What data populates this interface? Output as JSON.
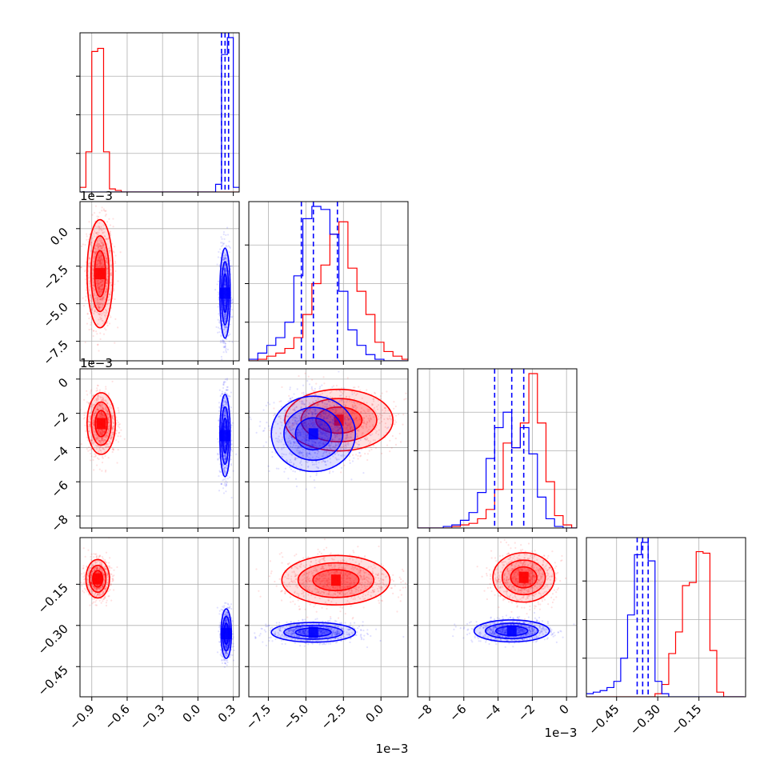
{
  "chart_data": {
    "type": "corner",
    "title": "",
    "series": [
      {
        "name": "",
        "color": "#ff0000"
      },
      {
        "name": "",
        "color": "#0000ff"
      }
    ],
    "quantile_lines_color": "#0000ff",
    "grid": true,
    "params": [
      {
        "range": [
          -1.0,
          0.35
        ],
        "ticks": [
          -0.9,
          -0.6,
          -0.3,
          0.0,
          0.3
        ],
        "tick_labels": [
          "−0.9",
          "−0.6",
          "−0.3",
          "0.0",
          "0.3"
        ],
        "offset": ""
      },
      {
        "range": [
          -0.0088,
          0.0018
        ],
        "ticks": [
          -0.0075,
          -0.005,
          -0.0025,
          0.0
        ],
        "tick_labels": [
          "−7.5",
          "−5.0",
          "−2.5",
          "0.0"
        ],
        "offset": "1e−3"
      },
      {
        "range": [
          -0.0087,
          0.0006
        ],
        "ticks": [
          -0.008,
          -0.006,
          -0.004,
          -0.002,
          0.0
        ],
        "tick_labels": [
          "−8",
          "−6",
          "−4",
          "−2",
          "0"
        ],
        "offset": "1e−3"
      },
      {
        "range": [
          -0.56,
          0.02
        ],
        "ticks": [
          -0.45,
          -0.3,
          -0.15
        ],
        "tick_labels": [
          "−0.45",
          "−0.30",
          "−0.15"
        ],
        "offset": ""
      }
    ],
    "histograms": [
      {
        "param": 0,
        "edges": [
          -1.0,
          -0.95,
          -0.9,
          -0.85,
          -0.8,
          -0.75,
          -0.7,
          -0.65,
          -0.6,
          -0.55,
          -0.5,
          -0.45,
          -0.4,
          -0.35,
          -0.3,
          -0.25,
          -0.2,
          -0.15,
          -0.1,
          -0.05,
          0.0,
          0.05,
          0.1,
          0.15,
          0.2,
          0.25,
          0.3,
          0.35
        ],
        "red": [
          0.03,
          0.26,
          0.91,
          0.93,
          0.26,
          0.02,
          0.01,
          0.0,
          0,
          0,
          0,
          0,
          0,
          0,
          0,
          0,
          0,
          0,
          0,
          0,
          0,
          0,
          0,
          0,
          0,
          0,
          0
        ],
        "blue": [
          0,
          0,
          0,
          0,
          0,
          0,
          0,
          0,
          0,
          0,
          0,
          0,
          0,
          0,
          0,
          0,
          0,
          0,
          0,
          0,
          0,
          0,
          0,
          0.05,
          0.89,
          1.0,
          0.03
        ],
        "quantiles": [
          0.2,
          0.23,
          0.26
        ]
      },
      {
        "param": 1,
        "edges": [
          -0.0088,
          -0.0082,
          -0.0076,
          -0.007,
          -0.0064,
          -0.0058,
          -0.0052,
          -0.0046,
          -0.004,
          -0.0034,
          -0.0028,
          -0.0022,
          -0.0016,
          -0.001,
          -0.0004,
          0.0002,
          0.0008,
          0.0014,
          0.002
        ],
        "red": [
          0.0,
          0.01,
          0.03,
          0.05,
          0.08,
          0.15,
          0.3,
          0.5,
          0.62,
          0.82,
          0.9,
          0.6,
          0.45,
          0.3,
          0.12,
          0.06,
          0.03,
          0.01
        ],
        "blue": [
          0.01,
          0.05,
          0.1,
          0.15,
          0.25,
          0.55,
          0.92,
          1.0,
          0.98,
          0.82,
          0.45,
          0.2,
          0.1,
          0.04,
          0.01,
          0.0,
          0.0,
          0.0
        ],
        "quantiles": [
          -0.0053,
          -0.0045,
          -0.0029
        ]
      },
      {
        "param": 2,
        "edges": [
          -0.0087,
          -0.0082,
          -0.0077,
          -0.0072,
          -0.0067,
          -0.0062,
          -0.0057,
          -0.0052,
          -0.0047,
          -0.0042,
          -0.0037,
          -0.0032,
          -0.0027,
          -0.0022,
          -0.0017,
          -0.0012,
          -0.0007,
          -0.0002,
          0.0003,
          0.0008
        ],
        "red": [
          0,
          0,
          0,
          0,
          0.01,
          0.02,
          0.03,
          0.06,
          0.12,
          0.25,
          0.55,
          0.52,
          0.68,
          1.0,
          0.68,
          0.3,
          0.08,
          0.02,
          0.0
        ],
        "blue": [
          0,
          0,
          0,
          0.01,
          0.02,
          0.05,
          0.1,
          0.23,
          0.45,
          0.65,
          0.75,
          0.52,
          0.65,
          0.48,
          0.2,
          0.06,
          0.01,
          0.0,
          0.0
        ],
        "quantiles": [
          -0.0042,
          -0.0032,
          -0.0025
        ]
      },
      {
        "param": 3,
        "edges": [
          -0.56,
          -0.535,
          -0.51,
          -0.485,
          -0.46,
          -0.435,
          -0.41,
          -0.385,
          -0.36,
          -0.335,
          -0.31,
          -0.285,
          -0.26,
          -0.235,
          -0.21,
          -0.185,
          -0.16,
          -0.135,
          -0.11,
          -0.085,
          -0.06,
          -0.035,
          -0.01,
          0.015
        ],
        "red": [
          0,
          0,
          0,
          0,
          0,
          0,
          0,
          0,
          0,
          0,
          0.02,
          0.08,
          0.28,
          0.42,
          0.72,
          0.74,
          0.94,
          0.93,
          0.3,
          0.03,
          0.0,
          0.0,
          0.0
        ],
        "blue": [
          0.02,
          0.03,
          0.04,
          0.06,
          0.1,
          0.25,
          0.53,
          0.92,
          1.0,
          0.88,
          0.1,
          0.02,
          0.0,
          0,
          0,
          0,
          0,
          0,
          0,
          0,
          0,
          0,
          0
        ],
        "quantiles": [
          -0.375,
          -0.355,
          -0.335
        ]
      }
    ],
    "scatter_panels": [
      {
        "x": 1,
        "y": 0,
        "red": {
          "mean": [
            -0.83,
            -0.003
          ],
          "sd": [
            0.055,
            0.0018
          ]
        },
        "blue": {
          "mean": [
            0.23,
            -0.0043
          ],
          "sd": [
            0.022,
            0.0015
          ]
        }
      },
      {
        "x": 2,
        "y": 0,
        "red": {
          "mean": [
            -0.82,
            -0.0026
          ],
          "sd": [
            0.06,
            0.0009
          ]
        },
        "blue": {
          "mean": [
            0.23,
            -0.0033
          ],
          "sd": [
            0.022,
            0.0012
          ]
        }
      },
      {
        "x": 2,
        "y": 1,
        "red": {
          "mean": [
            -0.0028,
            -0.0024
          ],
          "sd": [
            0.0018,
            0.0009
          ]
        },
        "blue": {
          "mean": [
            -0.0045,
            -0.0032
          ],
          "sd": [
            0.0014,
            0.0011
          ]
        }
      },
      {
        "x": 3,
        "y": 0,
        "red": {
          "mean": [
            -0.85,
            -0.13
          ],
          "sd": [
            0.05,
            0.035
          ]
        },
        "blue": {
          "mean": [
            0.24,
            -0.33
          ],
          "sd": [
            0.022,
            0.045
          ]
        }
      },
      {
        "x": 3,
        "y": 1,
        "red": {
          "mean": [
            -0.003,
            -0.135
          ],
          "sd": [
            0.0018,
            0.045
          ]
        },
        "blue": {
          "mean": [
            -0.0045,
            -0.325
          ],
          "sd": [
            0.0014,
            0.018
          ]
        }
      },
      {
        "x": 3,
        "y": 2,
        "red": {
          "mean": [
            -0.0025,
            -0.125
          ],
          "sd": [
            0.0009,
            0.045
          ]
        },
        "blue": {
          "mean": [
            -0.0032,
            -0.32
          ],
          "sd": [
            0.0011,
            0.02
          ]
        }
      }
    ]
  }
}
